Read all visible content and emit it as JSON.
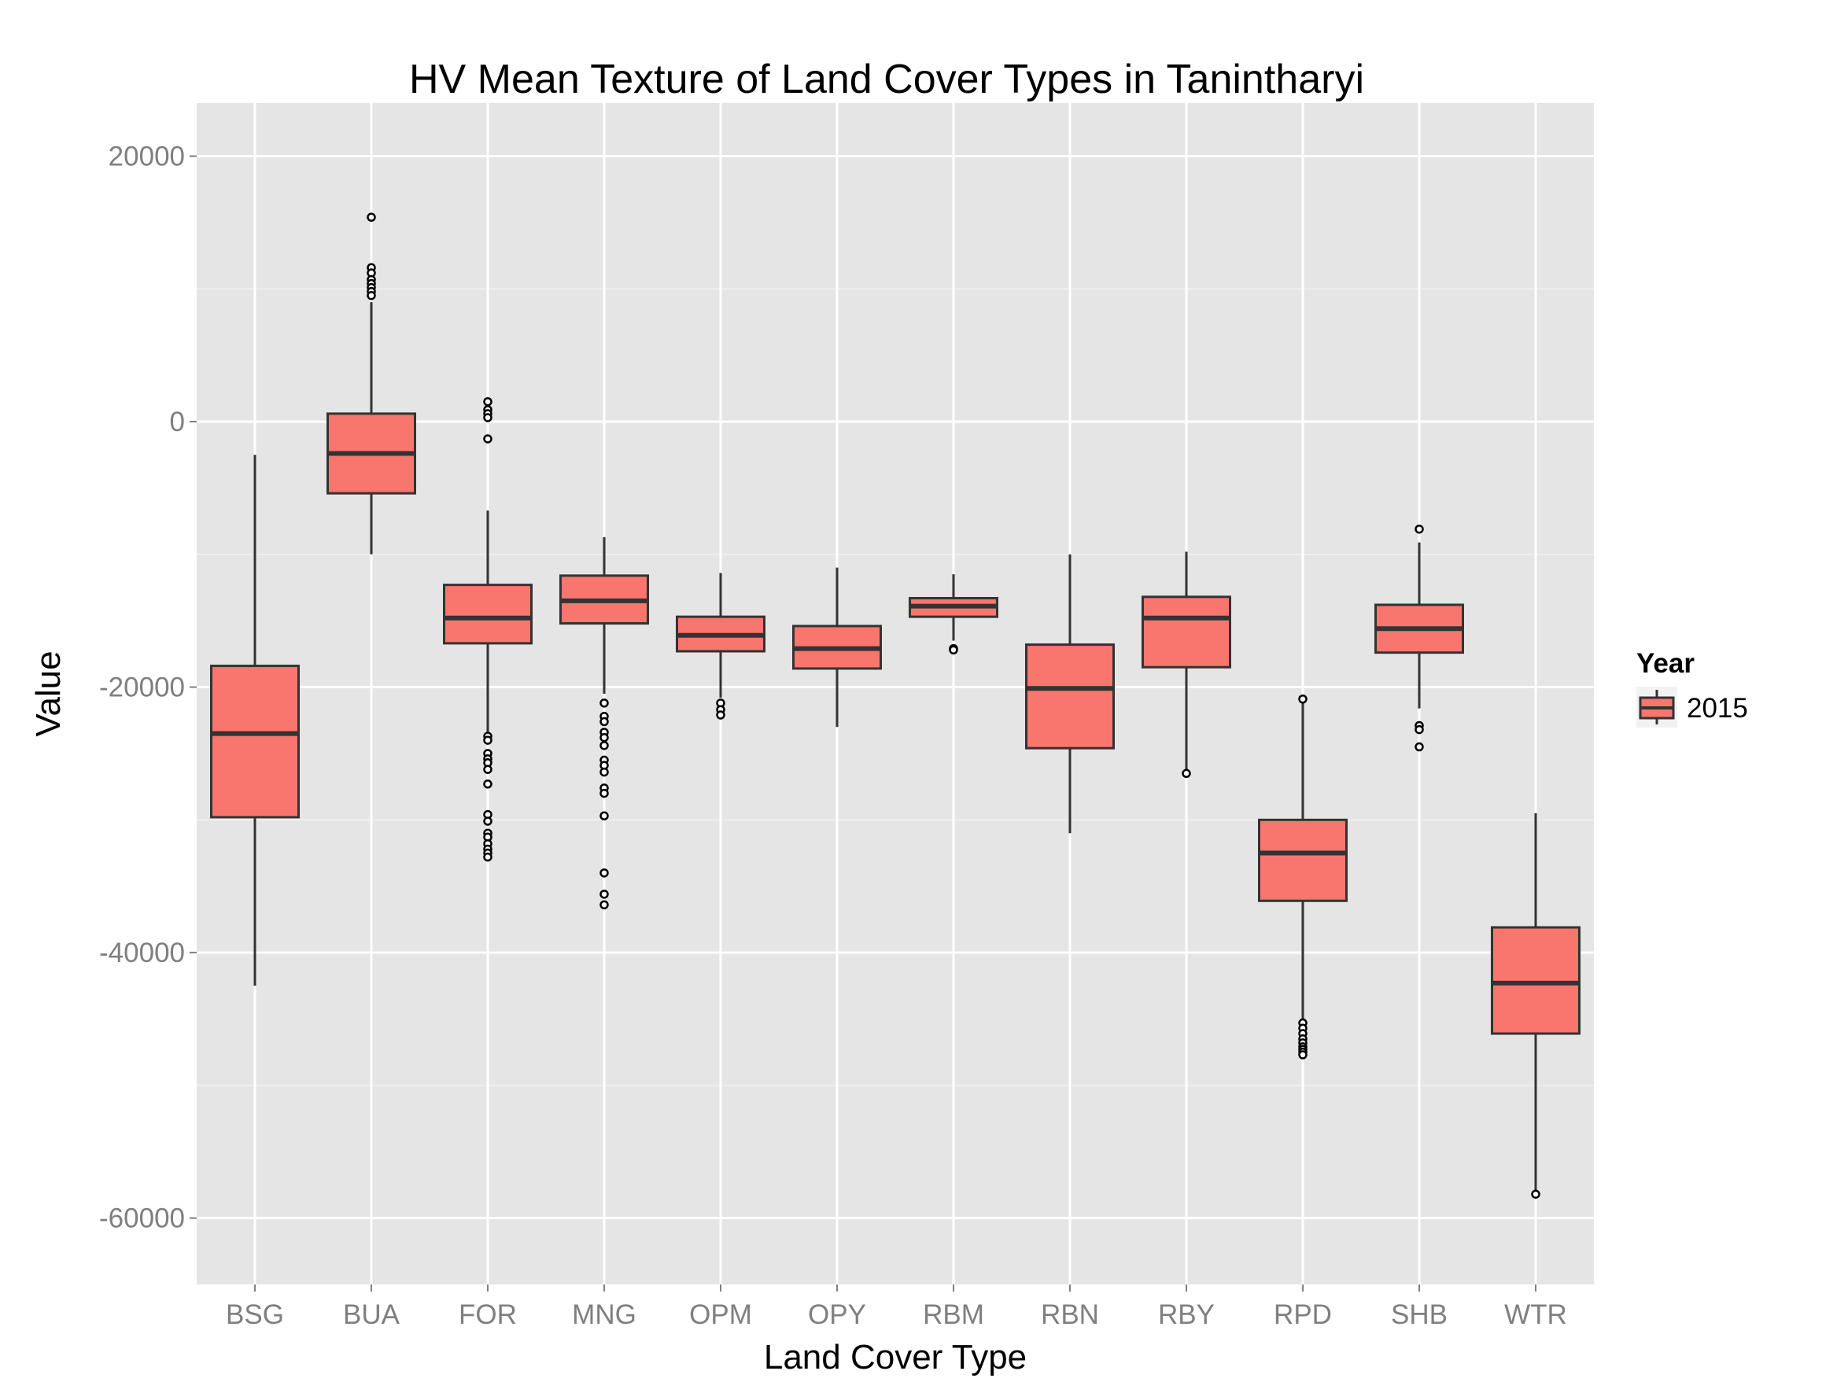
{
  "chart_data": {
    "type": "box",
    "title": "HV Mean Texture of Land Cover Types in Tanintharyi",
    "xlabel": "Land Cover Type",
    "ylabel": "Value",
    "ylim": [
      -65000,
      24000
    ],
    "yticks": [
      20000,
      0,
      -20000,
      -40000,
      -60000
    ],
    "ytick_labels": [
      "20000",
      "0",
      "-20000",
      "-40000",
      "-60000"
    ],
    "grid": true,
    "legend": {
      "title": "Year",
      "position": "right",
      "entries": [
        {
          "label": "2015",
          "color": "#f8766d"
        }
      ]
    },
    "colors": {
      "panel": "#e5e5e5",
      "grid_major": "#ffffff",
      "grid_minor": "#f2f2f2",
      "box_fill": "#f8766d",
      "line": "#333333"
    },
    "categories": [
      "BSG",
      "BUA",
      "FOR",
      "MNG",
      "OPM",
      "OPY",
      "RBM",
      "RBN",
      "RBY",
      "RPD",
      "SHB",
      "WTR"
    ],
    "series": [
      {
        "name": "2015",
        "boxes": [
          {
            "category": "BSG",
            "whisker_low": -42500,
            "q1": -29800,
            "median": -23500,
            "q3": -18400,
            "whisker_high": -2500,
            "outliers": []
          },
          {
            "category": "BUA",
            "whisker_low": -10000,
            "q1": -5400,
            "median": -2400,
            "q3": 600,
            "whisker_high": 9000,
            "outliers": [
              15400,
              11600,
              11200,
              10700,
              10400,
              10100,
              9800,
              9500
            ]
          },
          {
            "category": "FOR",
            "whisker_low": -23500,
            "q1": -16700,
            "median": -14800,
            "q3": -12300,
            "whisker_high": -6700,
            "outliers": [
              1500,
              900,
              600,
              300,
              -1300,
              -23700,
              -24000,
              -25000,
              -25400,
              -25700,
              -26200,
              -27300,
              -29600,
              -30100,
              -31000,
              -31300,
              -31800,
              -32200,
              -32500,
              -32800
            ]
          },
          {
            "category": "MNG",
            "whisker_low": -20500,
            "q1": -15200,
            "median": -13500,
            "q3": -11600,
            "whisker_high": -8700,
            "outliers": [
              -21200,
              -22200,
              -22600,
              -23400,
              -23800,
              -24400,
              -25500,
              -25900,
              -26400,
              -27600,
              -28000,
              -29700,
              -34000,
              -35600,
              -36400
            ]
          },
          {
            "category": "OPM",
            "whisker_low": -20800,
            "q1": -17300,
            "median": -16100,
            "q3": -14700,
            "whisker_high": -11400,
            "outliers": [
              -21200,
              -21700,
              -22100
            ]
          },
          {
            "category": "OPY",
            "whisker_low": -23000,
            "q1": -18600,
            "median": -17100,
            "q3": -15400,
            "whisker_high": -11000,
            "outliers": []
          },
          {
            "category": "RBM",
            "whisker_low": -16500,
            "q1": -14700,
            "median": -13900,
            "q3": -13300,
            "whisker_high": -11500,
            "outliers": [
              -17100,
              -17200
            ]
          },
          {
            "category": "RBN",
            "whisker_low": -31000,
            "q1": -24600,
            "median": -20100,
            "q3": -16800,
            "whisker_high": -10000,
            "outliers": []
          },
          {
            "category": "RBY",
            "whisker_low": -26400,
            "q1": -18500,
            "median": -14800,
            "q3": -13200,
            "whisker_high": -9800,
            "outliers": [
              -26500
            ]
          },
          {
            "category": "RPD",
            "whisker_low": -45000,
            "q1": -36100,
            "median": -32500,
            "q3": -30000,
            "whisker_high": -21200,
            "outliers": [
              -20900,
              -45300,
              -45700,
              -46100,
              -46500,
              -46800,
              -47100,
              -47300,
              -47500,
              -47700
            ]
          },
          {
            "category": "SHB",
            "whisker_low": -21600,
            "q1": -17400,
            "median": -15600,
            "q3": -13800,
            "whisker_high": -9100,
            "outliers": [
              -8100,
              -22900,
              -23200,
              -24500
            ]
          },
          {
            "category": "WTR",
            "whisker_low": -58000,
            "q1": -46100,
            "median": -42300,
            "q3": -38100,
            "whisker_high": -29500,
            "outliers": [
              -58200
            ]
          }
        ]
      }
    ]
  }
}
